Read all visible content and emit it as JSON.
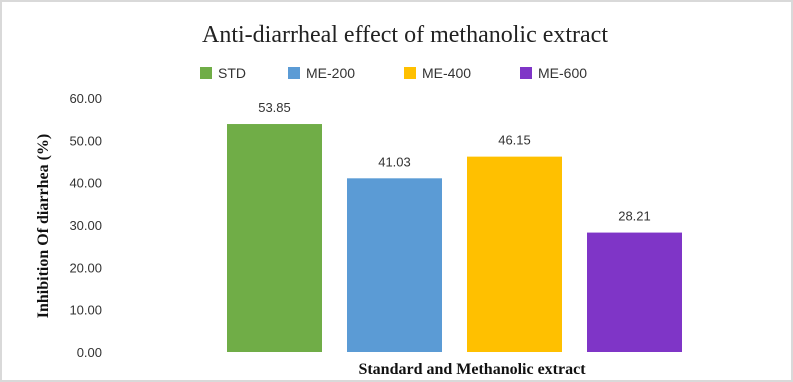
{
  "chart_data": {
    "type": "bar",
    "title": "Anti-diarrheal effect of methanolic extract",
    "xlabel": "Standard  and Methanolic extract",
    "ylabel": "Inhibition Of diarrhea  (%)",
    "ylim": [
      0,
      60
    ],
    "yticks": [
      "0.00",
      "10.00",
      "20.00",
      "30.00",
      "40.00",
      "50.00",
      "60.00"
    ],
    "grid": false,
    "legend_position": "top",
    "series": [
      {
        "name": "STD",
        "value": 53.85,
        "label": "53.85",
        "color": "#70ad47"
      },
      {
        "name": "ME-200",
        "value": 41.03,
        "label": "41.03",
        "color": "#5b9bd5"
      },
      {
        "name": "ME-400",
        "value": 46.15,
        "label": "46.15",
        "color": "#ffc000"
      },
      {
        "name": "ME-600",
        "value": 28.21,
        "label": "28.21",
        "color": "#7f35c7"
      }
    ]
  }
}
